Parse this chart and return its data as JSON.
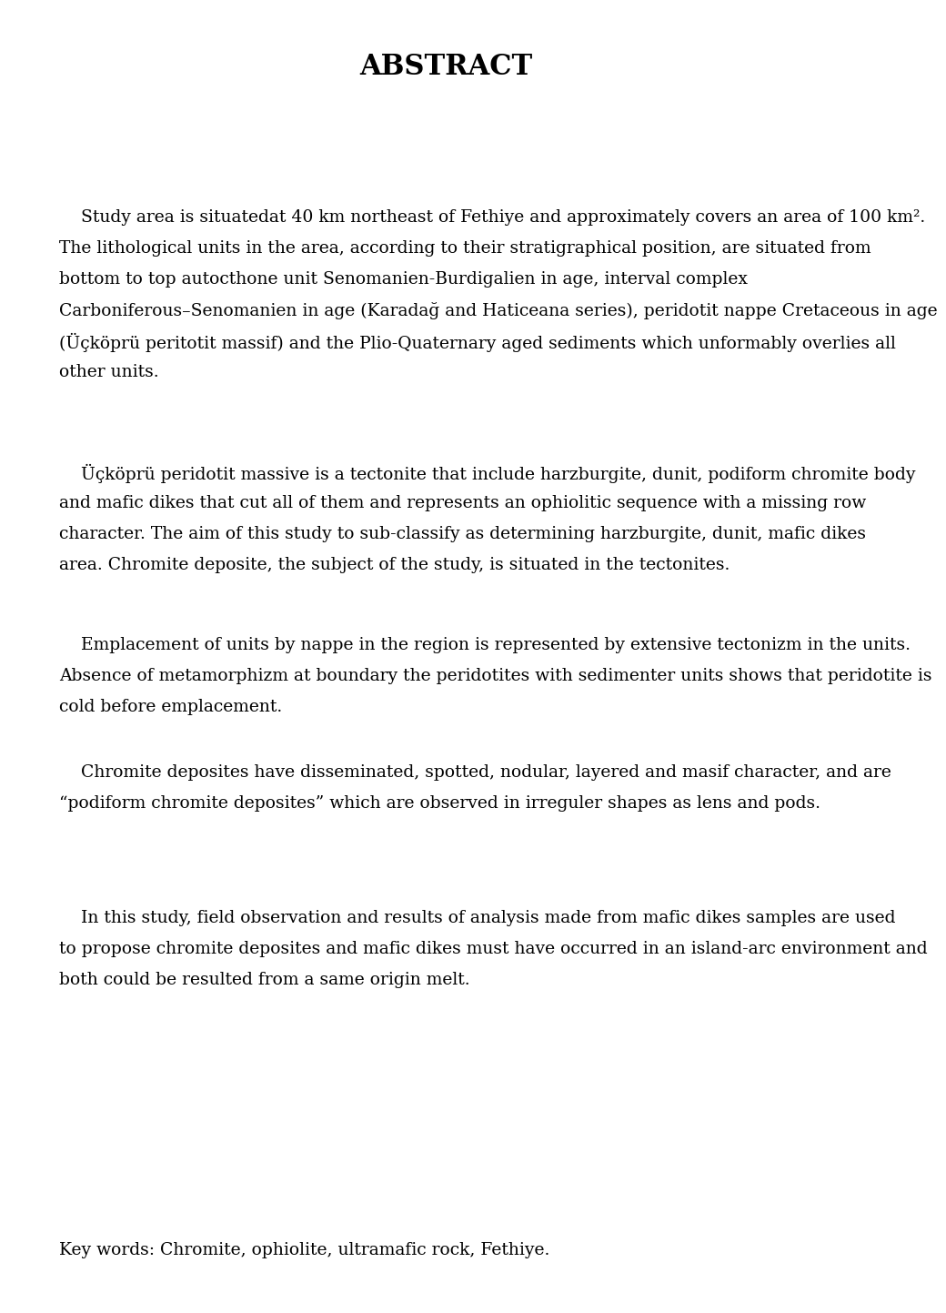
{
  "title": "ABSTRACT",
  "title_fontsize": 22,
  "title_fontfamily": "serif",
  "title_fontstyle": "bold",
  "body_fontsize": 13.5,
  "body_fontfamily": "serif",
  "background_color": "#ffffff",
  "text_color": "#000000",
  "paragraphs": [
    "    Study area is situatedat 40 km northeast of Fethiye and approximately covers an area of 100 km². The lithological units in the area, according to their stratigraphical position, are situated from bottom to top autocthone unit Senomanien-Burdigalien in age, interval complex Carboniferous–Senomanien in age (Karadağ and Haticeana series), peridotit nappe Cretaceous in age (Üçköprü peritotit massif) and the Plio-Quaternary aged sediments which unformably overlies all other units.",
    "    Üçköprü peridotit massive is a tectonite that include harzburgite, dunit, podiform chromite body and mafic dikes that cut all of them and represents an ophiolitic sequence with a missing row character. The aim of this study to sub-classify as determining harzburgite, dunit, mafic dikes area. Chromite deposite, the subject of the study, is situated in the tectonites.",
    "    Emplacement of units by nappe in the region is represented by extensive tectonizm in the units. Absence of metamorphizm at boundary the peridotites with sedimenter units shows that peridotite is cold before emplacement.",
    "    Chromite deposites have disseminated, spotted, nodular, layered and masif character, and are “podiform chromite deposites” which are observed in irreguler shapes as lens and pods.",
    "    In this study, field observation and results of analysis made from mafic dikes samples are used to propose chromite deposites and mafic dikes must have occurred in an island-arc environment and both could be resulted from a same origin melt.",
    "Key words: Chromite, ophiolite, ultramafic rock, Fethiye."
  ]
}
